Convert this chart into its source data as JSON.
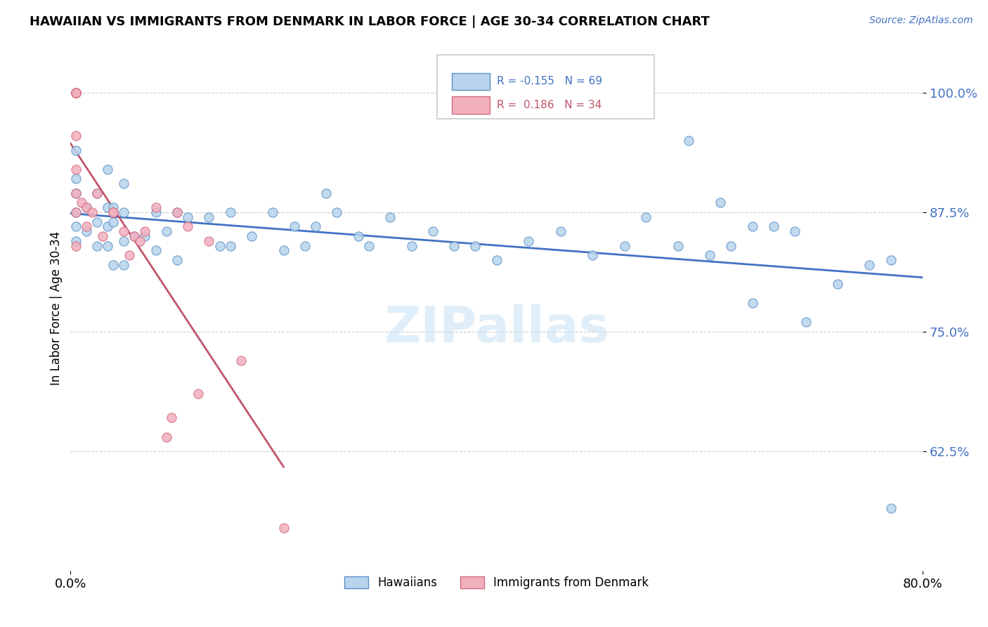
{
  "title": "HAWAIIAN VS IMMIGRANTS FROM DENMARK IN LABOR FORCE | AGE 30-34 CORRELATION CHART",
  "source": "Source: ZipAtlas.com",
  "ylabel": "In Labor Force | Age 30-34",
  "xlim": [
    0.0,
    0.8
  ],
  "ylim": [
    0.5,
    1.05
  ],
  "yticks": [
    0.625,
    0.75,
    0.875,
    1.0
  ],
  "ytick_labels": [
    "62.5%",
    "75.0%",
    "87.5%",
    "100.0%"
  ],
  "watermark": "ZIPallas",
  "blue_R": -0.155,
  "blue_N": 69,
  "pink_R": 0.186,
  "pink_N": 34,
  "blue_color": "#b8d4ec",
  "pink_color": "#f2b0be",
  "blue_edge_color": "#5b8fc9",
  "pink_edge_color": "#d4687c",
  "blue_line_color": "#4472c4",
  "pink_line_color": "#c0556a",
  "legend_label_blue": "Hawaiians",
  "legend_label_pink": "Immigrants from Denmark",
  "blue_x": [
    0.005,
    0.005,
    0.005,
    0.005,
    0.005,
    0.005,
    0.015,
    0.015,
    0.025,
    0.025,
    0.025,
    0.035,
    0.035,
    0.035,
    0.035,
    0.04,
    0.04,
    0.04,
    0.05,
    0.05,
    0.05,
    0.05,
    0.06,
    0.07,
    0.08,
    0.08,
    0.09,
    0.1,
    0.1,
    0.11,
    0.13,
    0.14,
    0.15,
    0.15,
    0.17,
    0.19,
    0.2,
    0.21,
    0.22,
    0.23,
    0.24,
    0.25,
    0.27,
    0.28,
    0.3,
    0.32,
    0.34,
    0.36,
    0.38,
    0.4,
    0.43,
    0.46,
    0.49,
    0.52,
    0.54,
    0.57,
    0.6,
    0.62,
    0.64,
    0.66,
    0.68,
    0.72,
    0.75,
    0.77,
    0.58,
    0.61,
    0.64,
    0.69,
    0.77
  ],
  "blue_y": [
    0.845,
    0.86,
    0.875,
    0.895,
    0.91,
    0.94,
    0.855,
    0.88,
    0.84,
    0.865,
    0.895,
    0.84,
    0.86,
    0.88,
    0.92,
    0.82,
    0.865,
    0.88,
    0.82,
    0.845,
    0.875,
    0.905,
    0.85,
    0.85,
    0.835,
    0.875,
    0.855,
    0.825,
    0.875,
    0.87,
    0.87,
    0.84,
    0.84,
    0.875,
    0.85,
    0.875,
    0.835,
    0.86,
    0.84,
    0.86,
    0.895,
    0.875,
    0.85,
    0.84,
    0.87,
    0.84,
    0.855,
    0.84,
    0.84,
    0.825,
    0.845,
    0.855,
    0.83,
    0.84,
    0.87,
    0.84,
    0.83,
    0.84,
    0.86,
    0.86,
    0.855,
    0.8,
    0.82,
    0.825,
    0.95,
    0.885,
    0.78,
    0.76,
    0.565
  ],
  "pink_x": [
    0.005,
    0.005,
    0.005,
    0.005,
    0.005,
    0.005,
    0.005,
    0.005,
    0.005,
    0.005,
    0.005,
    0.005,
    0.01,
    0.015,
    0.015,
    0.02,
    0.025,
    0.03,
    0.04,
    0.05,
    0.06,
    0.07,
    0.08,
    0.09,
    0.1,
    0.11,
    0.13,
    0.04,
    0.055,
    0.065,
    0.095,
    0.12,
    0.16,
    0.2
  ],
  "pink_y": [
    1.0,
    1.0,
    1.0,
    1.0,
    1.0,
    1.0,
    1.0,
    0.955,
    0.92,
    0.895,
    0.875,
    0.84,
    0.885,
    0.88,
    0.86,
    0.875,
    0.895,
    0.85,
    0.875,
    0.855,
    0.85,
    0.855,
    0.88,
    0.64,
    0.875,
    0.86,
    0.845,
    0.875,
    0.83,
    0.845,
    0.66,
    0.685,
    0.72,
    0.545
  ]
}
